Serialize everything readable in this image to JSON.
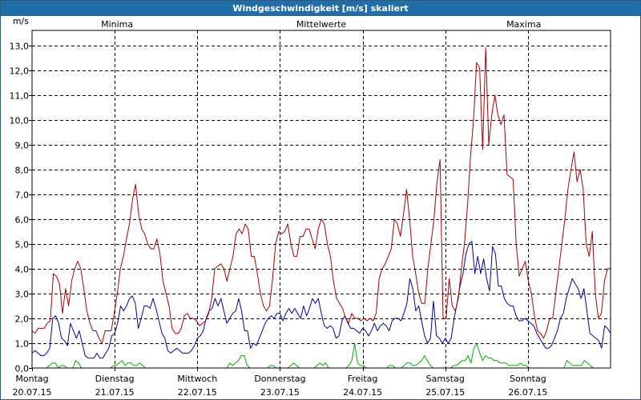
{
  "window": {
    "title": "Windgeschwindigkeit [m/s] skaliert"
  },
  "chart_data": {
    "type": "line",
    "title": "Windgeschwindigkeit [m/s] skaliert",
    "ylabel": "m/s",
    "ylim": [
      0,
      13.6
    ],
    "yticks": [
      "0,0",
      "1,0",
      "2,0",
      "3,0",
      "4,0",
      "5,0",
      "6,0",
      "7,0",
      "8,0",
      "9,0",
      "10,0",
      "11,0",
      "12,0",
      "13,0"
    ],
    "days": [
      {
        "name": "Montag",
        "date": "20.07.15"
      },
      {
        "name": "Dienstag",
        "date": "21.07.15"
      },
      {
        "name": "Mittwoch",
        "date": "22.07.15"
      },
      {
        "name": "Donnerstag",
        "date": "23.07.15"
      },
      {
        "name": "Freitag",
        "date": "24.07.15"
      },
      {
        "name": "Samstag",
        "date": "25.07.15"
      },
      {
        "name": "Sonntag",
        "date": "26.07.15"
      }
    ],
    "series": [
      {
        "name": "Minima",
        "color": "#00aa00",
        "values": [
          0,
          0,
          0,
          0,
          0,
          0,
          0.1,
          0.2,
          0.2,
          0,
          0.1,
          0.1,
          0,
          0,
          0,
          0.3,
          0.2,
          0,
          0,
          0,
          0,
          0,
          0,
          0,
          0,
          0,
          0,
          0,
          0.1,
          0.1,
          0.2,
          0.3,
          0.1,
          0.2,
          0.2,
          0.1,
          0.1,
          0.2,
          0.1,
          0,
          0,
          0,
          0,
          0,
          0,
          0,
          0,
          0,
          0,
          0,
          0,
          0,
          0,
          0,
          0,
          0,
          0,
          0,
          0,
          0,
          0,
          0,
          0,
          0,
          0,
          0,
          0,
          0,
          0.2,
          0.1,
          0.2,
          0.3,
          0.5,
          0.5,
          0.1,
          0,
          0,
          0,
          0,
          0,
          0,
          0,
          0.1,
          0.1,
          0,
          0,
          0,
          0,
          0,
          0.1,
          0.2,
          0.1,
          0,
          0,
          0,
          0,
          0,
          0,
          0.1,
          0.2,
          0.1,
          0.2,
          0,
          0,
          0,
          0,
          0,
          0,
          0,
          0.1,
          0.3,
          1,
          0.2,
          0.1,
          0.1,
          0,
          0,
          0,
          0,
          0,
          0,
          0,
          0,
          0.1,
          0.1,
          0,
          0,
          0,
          0.1,
          0.2,
          0.2,
          0.1,
          0.1,
          0.2,
          0.3,
          0.5,
          0.3,
          0.1,
          0,
          0,
          0,
          0,
          0,
          0,
          0,
          0.1,
          0.1,
          0.2,
          0.3,
          0.3,
          0.5,
          0.2,
          0.8,
          1,
          0.6,
          0.3,
          0.5,
          0.4,
          0.4,
          0.3,
          0.3,
          0.2,
          0.2,
          0.2,
          0.1,
          0.1,
          0.1,
          0.1,
          0.2,
          0.1,
          0.1,
          0,
          0,
          0,
          0,
          0,
          0,
          0,
          0,
          0,
          0,
          0,
          0,
          0,
          0.3,
          0.2,
          0.1,
          0.1,
          0.1,
          0.1,
          0.3,
          0.2,
          0.1,
          0,
          0,
          0,
          0,
          0,
          0,
          0
        ]
      },
      {
        "name": "Mittelwerte",
        "color": "#0000aa",
        "values": [
          0.6,
          0.7,
          0.6,
          0.5,
          0.5,
          0.6,
          0.8,
          2,
          2.1,
          1.8,
          1.2,
          1.1,
          0.9,
          1.8,
          1.5,
          1.2,
          1.5,
          1,
          0.5,
          0.4,
          0.4,
          0.4,
          0.6,
          0.4,
          0.4,
          0.6,
          0.8,
          1.3,
          1.4,
          1.8,
          2.5,
          2.3,
          2.5,
          2.8,
          2.9,
          2.6,
          1.6,
          2,
          2.5,
          2.5,
          2.4,
          2.8,
          2.4,
          1.9,
          1.4,
          1.2,
          0.7,
          0.6,
          0.7,
          0.8,
          0.7,
          0.6,
          0.6,
          0.6,
          0.7,
          0.9,
          1.2,
          1.3,
          1.5,
          2,
          2.3,
          2.4,
          2.8,
          2.5,
          2.8,
          2.3,
          1.8,
          2,
          2.2,
          2.3,
          2.8,
          2.3,
          1.5,
          1.5,
          0.8,
          1,
          0.9,
          1.2,
          1.5,
          1.8,
          2,
          2.1,
          2,
          2.2,
          2.2,
          1.9,
          2.2,
          2.4,
          2.2,
          2.4,
          2.2,
          2,
          2.5,
          2.1,
          2.4,
          2.8,
          2.6,
          2.8,
          2.2,
          1.7,
          1.6,
          1.7,
          1.6,
          1.2,
          1.3,
          1.9,
          2.1,
          1.8,
          1.6,
          1.6,
          1.5,
          1.4,
          1.6,
          1.5,
          1.3,
          1.5,
          1.8,
          1.5,
          1.7,
          1.8,
          1.7,
          1.5,
          1.9,
          2,
          2,
          1.9,
          2.2,
          2.6,
          3.6,
          3.2,
          2.3,
          2.5,
          1.9,
          1.3,
          1,
          1.2,
          2.7,
          1.3,
          1.2,
          1,
          1.2,
          1,
          1.2,
          2,
          2.6,
          3.3,
          3.8,
          4.6,
          5,
          5.1,
          3.8,
          4.5,
          3.8,
          4.4,
          3.6,
          3.1,
          4.9,
          4.6,
          3.3,
          3.3,
          2.8,
          2.6,
          2.5,
          2.5,
          2.1,
          1.9,
          1.9,
          2,
          1.9,
          1.8,
          1.7,
          1.4,
          1.2,
          1,
          0.8,
          0.8,
          0.9,
          1.2,
          1.5,
          2,
          2.2,
          2.8,
          3.2,
          3.6,
          3.4,
          3.2,
          2.8,
          3.2,
          2.3,
          1.4,
          1.3,
          1.2,
          1.1,
          0.8,
          1.7,
          1.6,
          1.4
        ]
      },
      {
        "name": "Maxima",
        "color": "#aa0000",
        "values": [
          1.5,
          1.4,
          1.6,
          1.6,
          1.6,
          1.8,
          1.9,
          3.8,
          3.7,
          3.4,
          2.2,
          3.2,
          2.5,
          3.5,
          4,
          4.3,
          4,
          3.2,
          2.3,
          1.8,
          1.5,
          1.5,
          1.2,
          1,
          1.5,
          1.5,
          1.5,
          2.2,
          3,
          4,
          4.5,
          5.2,
          5.8,
          6.8,
          7.4,
          6.2,
          5.6,
          5.4,
          5,
          4.8,
          4.8,
          5.2,
          4.6,
          3.5,
          3,
          2.5,
          1.6,
          1.4,
          1.4,
          1.6,
          2.1,
          2.2,
          2,
          2,
          1.9,
          1.7,
          1.8,
          1.9,
          2.2,
          2.8,
          4,
          4.1,
          4.2,
          4,
          3.5,
          4,
          4.5,
          5.4,
          5.6,
          5.4,
          5.8,
          5.6,
          4.5,
          4.5,
          3.8,
          3,
          2.5,
          2.3,
          2.5,
          3.6,
          5,
          5.5,
          5.4,
          5.5,
          5.8,
          5,
          4.5,
          4.5,
          5.3,
          5.3,
          5.6,
          5.6,
          5.2,
          4.8,
          5.6,
          6,
          5.8,
          5,
          4.5,
          3.5,
          2.8,
          2.6,
          2.4,
          2,
          1.8,
          2.2,
          2,
          2,
          1.9,
          2,
          1.9,
          2,
          1.9,
          2.2,
          3.6,
          4,
          4.2,
          4.5,
          4.8,
          6,
          5.8,
          5.3,
          6.2,
          7.2,
          6,
          4.5,
          3.8,
          3,
          2.6,
          2.6,
          4,
          5,
          6,
          7.5,
          8.4,
          2,
          2,
          3.6,
          2.5,
          2.3,
          2.8,
          4,
          5,
          6.5,
          8.5,
          10,
          12.3,
          12.1,
          8.8,
          12.9,
          9,
          10.2,
          11,
          10.2,
          9.8,
          10.2,
          7.8,
          7.7,
          7.6,
          5,
          3.7,
          4,
          4.3,
          3.5,
          3,
          2.1,
          1.5,
          1.4,
          1.2,
          1.5,
          2,
          2,
          3,
          4,
          5,
          6,
          7.2,
          8,
          8.7,
          7.5,
          8,
          7.2,
          5,
          4.5,
          5.5,
          3,
          2,
          2.2,
          3.5,
          4,
          4
        ]
      }
    ]
  }
}
